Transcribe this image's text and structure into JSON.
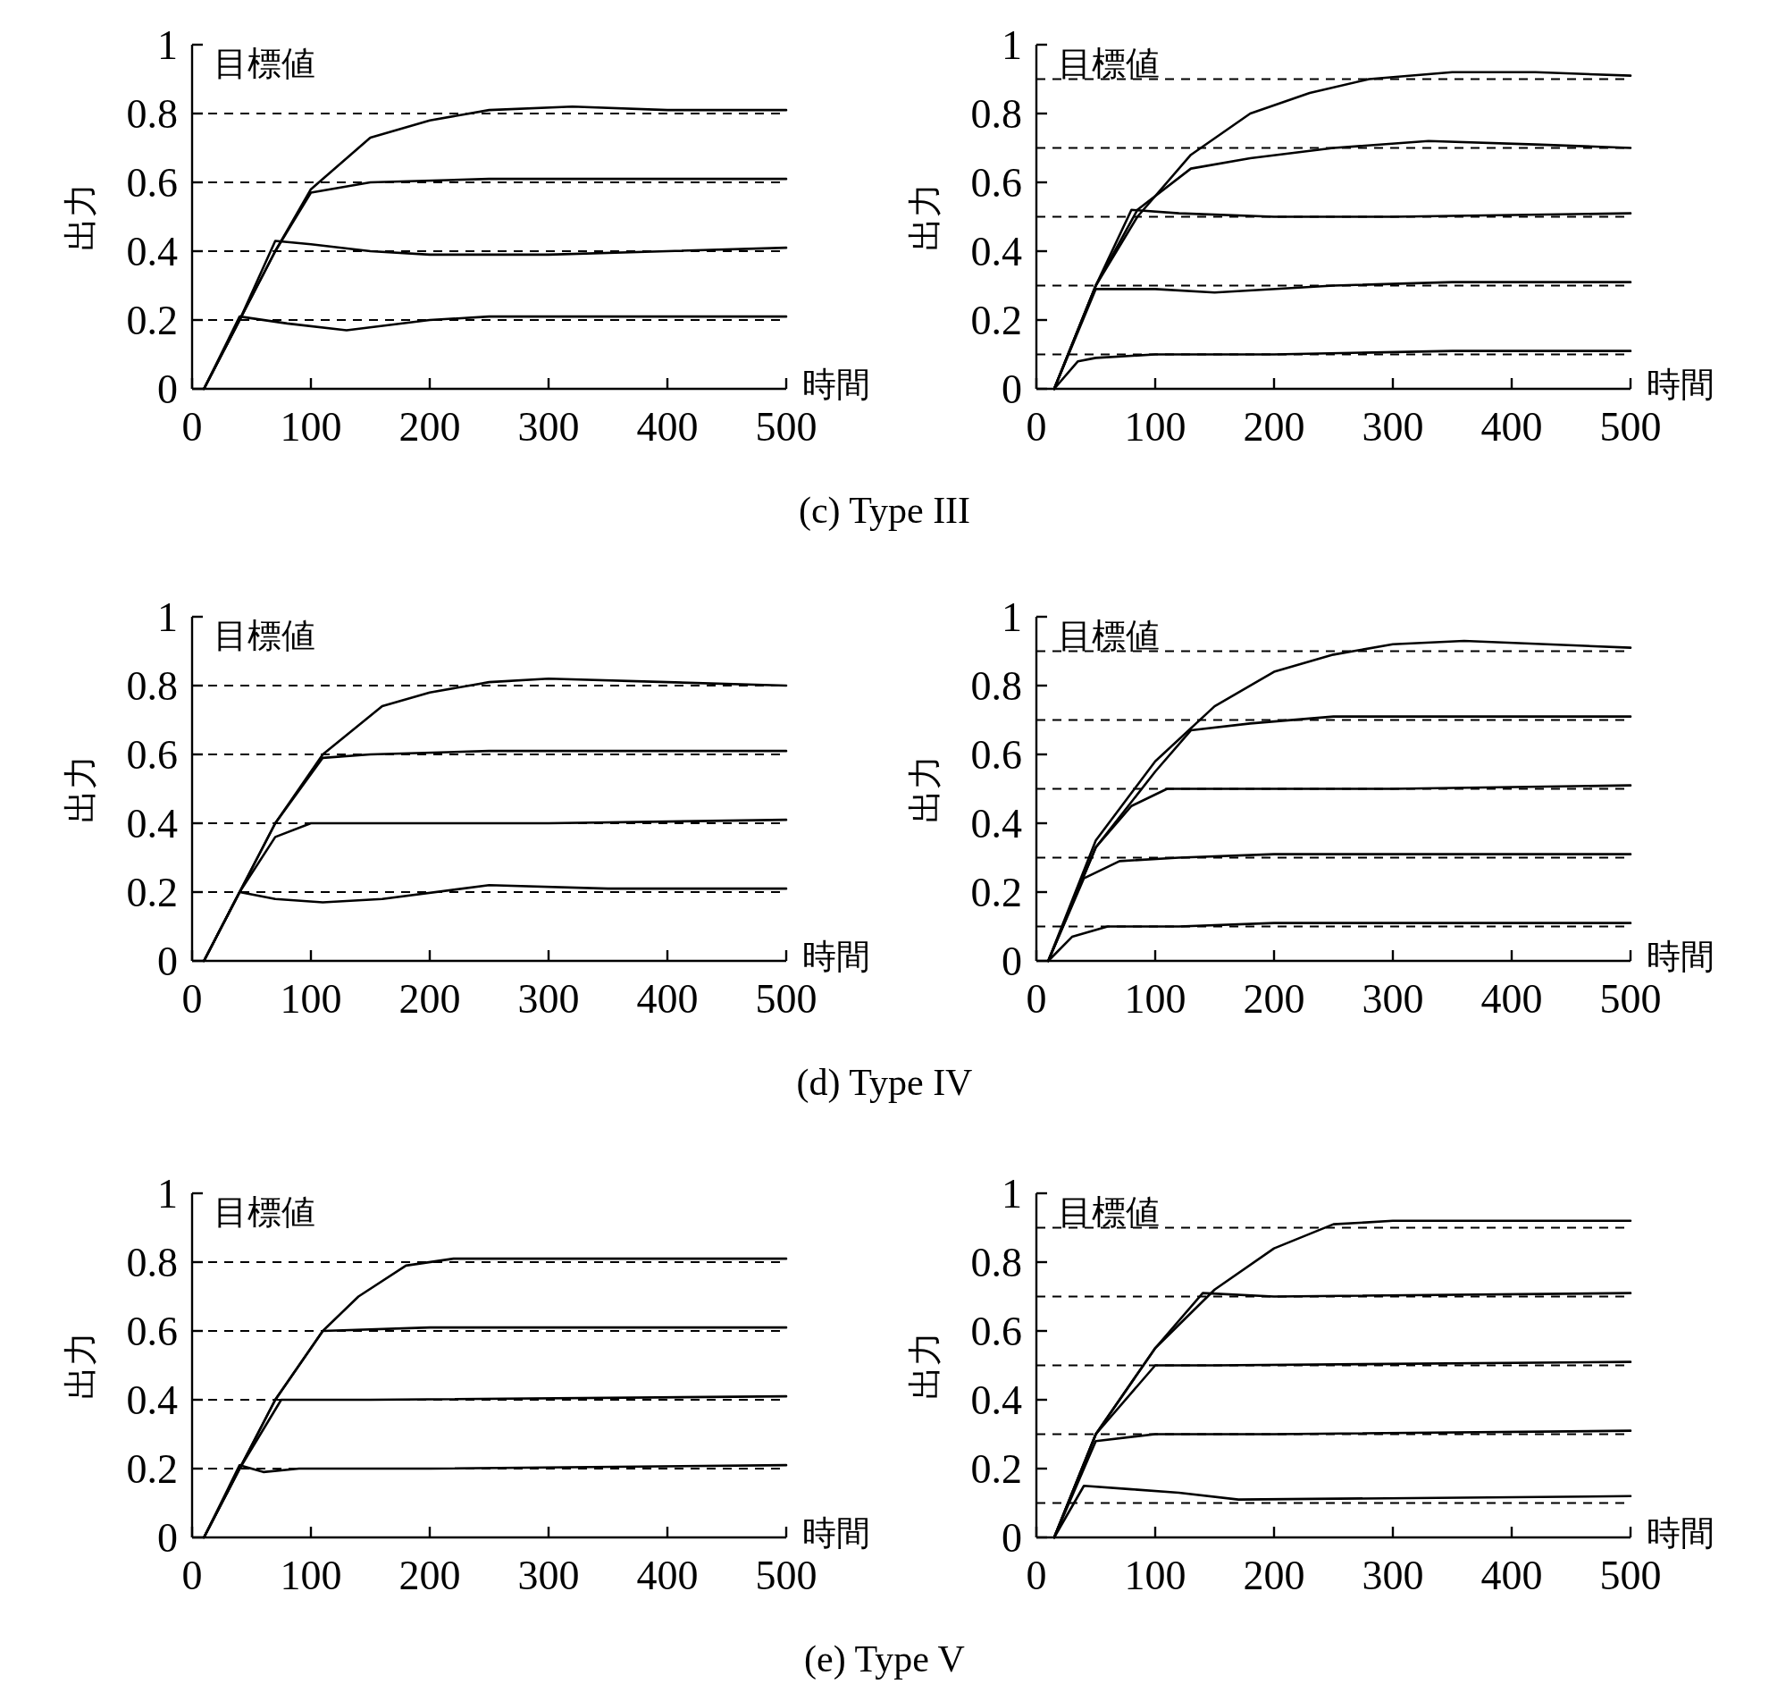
{
  "chart_data": [
    {
      "type": "line",
      "xlabel": "時間",
      "ylabel": "出力",
      "annotations": [
        "目標値",
        "(c) Type III"
      ],
      "xlim": [
        0,
        500
      ],
      "ylim": [
        0,
        1
      ],
      "xticks": [
        0,
        100,
        200,
        300,
        400,
        500
      ],
      "yticks": [
        0,
        0.2,
        0.4,
        0.6,
        0.8,
        1
      ],
      "ref_lines": [
        {
          "axis": "y",
          "value": 0.2,
          "line_style": "dashed"
        },
        {
          "axis": "y",
          "value": 0.4,
          "line_style": "dashed"
        },
        {
          "axis": "y",
          "value": 0.6,
          "line_style": "dashed"
        },
        {
          "axis": "y",
          "value": 0.8,
          "line_style": "dashed"
        }
      ],
      "series": [
        {
          "color": "#000000",
          "x": [
            10,
            40,
            70,
            100,
            150,
            200,
            250,
            320,
            400,
            500
          ],
          "values": [
            0,
            0.2,
            0.4,
            0.58,
            0.73,
            0.78,
            0.81,
            0.82,
            0.81,
            0.81
          ]
        },
        {
          "color": "#000000",
          "x": [
            10,
            40,
            70,
            100,
            150,
            250,
            350,
            500
          ],
          "values": [
            0,
            0.2,
            0.4,
            0.57,
            0.6,
            0.61,
            0.61,
            0.61
          ]
        },
        {
          "color": "#000000",
          "x": [
            10,
            40,
            70,
            100,
            150,
            200,
            300,
            400,
            500
          ],
          "values": [
            0,
            0.2,
            0.43,
            0.42,
            0.4,
            0.39,
            0.39,
            0.4,
            0.41
          ]
        },
        {
          "color": "#000000",
          "x": [
            10,
            40,
            80,
            130,
            200,
            250,
            350,
            500
          ],
          "values": [
            0,
            0.21,
            0.19,
            0.17,
            0.2,
            0.21,
            0.21,
            0.21
          ]
        }
      ]
    },
    {
      "type": "line",
      "xlabel": "時間",
      "ylabel": "出力",
      "annotations": [
        "目標値"
      ],
      "xlim": [
        0,
        500
      ],
      "ylim": [
        0,
        1
      ],
      "xticks": [
        0,
        100,
        200,
        300,
        400,
        500
      ],
      "yticks": [
        0,
        0.2,
        0.4,
        0.6,
        0.8,
        1
      ],
      "ref_lines": [
        {
          "axis": "y",
          "value": 0.1,
          "line_style": "dashed"
        },
        {
          "axis": "y",
          "value": 0.3,
          "line_style": "dashed"
        },
        {
          "axis": "y",
          "value": 0.5,
          "line_style": "dashed"
        },
        {
          "axis": "y",
          "value": 0.7,
          "line_style": "dashed"
        },
        {
          "axis": "y",
          "value": 0.9,
          "line_style": "dashed"
        }
      ],
      "series": [
        {
          "color": "#000000",
          "x": [
            15,
            50,
            85,
            130,
            180,
            230,
            280,
            350,
            420,
            500
          ],
          "values": [
            0,
            0.3,
            0.5,
            0.68,
            0.8,
            0.86,
            0.9,
            0.92,
            0.92,
            0.91
          ]
        },
        {
          "color": "#000000",
          "x": [
            15,
            50,
            85,
            130,
            180,
            250,
            330,
            420,
            500
          ],
          "values": [
            0,
            0.3,
            0.52,
            0.64,
            0.67,
            0.7,
            0.72,
            0.71,
            0.7
          ]
        },
        {
          "color": "#000000",
          "x": [
            15,
            50,
            80,
            120,
            200,
            300,
            500
          ],
          "values": [
            0,
            0.3,
            0.52,
            0.51,
            0.5,
            0.5,
            0.51
          ]
        },
        {
          "color": "#000000",
          "x": [
            15,
            50,
            100,
            150,
            250,
            350,
            500
          ],
          "values": [
            0,
            0.29,
            0.29,
            0.28,
            0.3,
            0.31,
            0.31
          ]
        },
        {
          "color": "#000000",
          "x": [
            15,
            35,
            50,
            100,
            200,
            350,
            500
          ],
          "values": [
            0,
            0.08,
            0.09,
            0.1,
            0.1,
            0.11,
            0.11
          ]
        }
      ]
    },
    {
      "type": "line",
      "xlabel": "時間",
      "ylabel": "出力",
      "annotations": [
        "目標値",
        "(d) Type IV"
      ],
      "xlim": [
        0,
        500
      ],
      "ylim": [
        0,
        1
      ],
      "xticks": [
        0,
        100,
        200,
        300,
        400,
        500
      ],
      "yticks": [
        0,
        0.2,
        0.4,
        0.6,
        0.8,
        1
      ],
      "ref_lines": [
        {
          "axis": "y",
          "value": 0.2,
          "line_style": "dashed"
        },
        {
          "axis": "y",
          "value": 0.4,
          "line_style": "dashed"
        },
        {
          "axis": "y",
          "value": 0.6,
          "line_style": "dashed"
        },
        {
          "axis": "y",
          "value": 0.8,
          "line_style": "dashed"
        }
      ],
      "series": [
        {
          "color": "#000000",
          "x": [
            10,
            40,
            70,
            110,
            160,
            200,
            250,
            300,
            400,
            500
          ],
          "values": [
            0,
            0.2,
            0.4,
            0.6,
            0.74,
            0.78,
            0.81,
            0.82,
            0.81,
            0.8
          ]
        },
        {
          "color": "#000000",
          "x": [
            10,
            40,
            70,
            110,
            150,
            250,
            500
          ],
          "values": [
            0,
            0.2,
            0.4,
            0.59,
            0.6,
            0.61,
            0.61
          ]
        },
        {
          "color": "#000000",
          "x": [
            10,
            40,
            70,
            100,
            150,
            300,
            500
          ],
          "values": [
            0,
            0.2,
            0.36,
            0.4,
            0.4,
            0.4,
            0.41
          ]
        },
        {
          "color": "#000000",
          "x": [
            10,
            40,
            70,
            110,
            160,
            250,
            350,
            500
          ],
          "values": [
            0,
            0.2,
            0.18,
            0.17,
            0.18,
            0.22,
            0.21,
            0.21
          ]
        }
      ]
    },
    {
      "type": "line",
      "xlabel": "時間",
      "ylabel": "出力",
      "annotations": [
        "目標値"
      ],
      "xlim": [
        0,
        500
      ],
      "ylim": [
        0,
        1
      ],
      "xticks": [
        0,
        100,
        200,
        300,
        400,
        500
      ],
      "yticks": [
        0,
        0.2,
        0.4,
        0.6,
        0.8,
        1
      ],
      "ref_lines": [
        {
          "axis": "y",
          "value": 0.1,
          "line_style": "dashed"
        },
        {
          "axis": "y",
          "value": 0.3,
          "line_style": "dashed"
        },
        {
          "axis": "y",
          "value": 0.5,
          "line_style": "dashed"
        },
        {
          "axis": "y",
          "value": 0.7,
          "line_style": "dashed"
        },
        {
          "axis": "y",
          "value": 0.9,
          "line_style": "dashed"
        }
      ],
      "series": [
        {
          "color": "#000000",
          "x": [
            10,
            50,
            100,
            150,
            200,
            250,
            300,
            360,
            500
          ],
          "values": [
            0,
            0.35,
            0.58,
            0.74,
            0.84,
            0.89,
            0.92,
            0.93,
            0.91
          ]
        },
        {
          "color": "#000000",
          "x": [
            10,
            50,
            100,
            130,
            180,
            250,
            350,
            500
          ],
          "values": [
            0,
            0.33,
            0.55,
            0.67,
            0.69,
            0.71,
            0.71,
            0.71
          ]
        },
        {
          "color": "#000000",
          "x": [
            10,
            50,
            80,
            110,
            200,
            300,
            500
          ],
          "values": [
            0,
            0.33,
            0.45,
            0.5,
            0.5,
            0.5,
            0.51
          ]
        },
        {
          "color": "#000000",
          "x": [
            10,
            40,
            70,
            120,
            200,
            300,
            500
          ],
          "values": [
            0,
            0.24,
            0.29,
            0.3,
            0.31,
            0.31,
            0.31
          ]
        },
        {
          "color": "#000000",
          "x": [
            10,
            30,
            60,
            120,
            200,
            350,
            500
          ],
          "values": [
            0,
            0.07,
            0.1,
            0.1,
            0.11,
            0.11,
            0.11
          ]
        }
      ]
    },
    {
      "type": "line",
      "xlabel": "時間",
      "ylabel": "出力",
      "annotations": [
        "目標値",
        "(e) Type V"
      ],
      "xlim": [
        0,
        500
      ],
      "ylim": [
        0,
        1
      ],
      "xticks": [
        0,
        100,
        200,
        300,
        400,
        500
      ],
      "yticks": [
        0,
        0.2,
        0.4,
        0.6,
        0.8,
        1
      ],
      "ref_lines": [
        {
          "axis": "y",
          "value": 0.2,
          "line_style": "dashed"
        },
        {
          "axis": "y",
          "value": 0.4,
          "line_style": "dashed"
        },
        {
          "axis": "y",
          "value": 0.6,
          "line_style": "dashed"
        },
        {
          "axis": "y",
          "value": 0.8,
          "line_style": "dashed"
        }
      ],
      "series": [
        {
          "color": "#000000",
          "x": [
            10,
            40,
            70,
            110,
            140,
            180,
            220,
            300,
            500
          ],
          "values": [
            0,
            0.2,
            0.4,
            0.6,
            0.7,
            0.79,
            0.81,
            0.81,
            0.81
          ]
        },
        {
          "color": "#000000",
          "x": [
            10,
            40,
            70,
            110,
            200,
            500
          ],
          "values": [
            0,
            0.2,
            0.4,
            0.6,
            0.61,
            0.61
          ]
        },
        {
          "color": "#000000",
          "x": [
            10,
            40,
            75,
            150,
            500
          ],
          "values": [
            0,
            0.2,
            0.4,
            0.4,
            0.41
          ]
        },
        {
          "color": "#000000",
          "x": [
            10,
            40,
            60,
            90,
            200,
            500
          ],
          "values": [
            0,
            0.21,
            0.19,
            0.2,
            0.2,
            0.21
          ]
        }
      ]
    },
    {
      "type": "line",
      "xlabel": "時間",
      "ylabel": "出力",
      "annotations": [
        "目標値"
      ],
      "xlim": [
        0,
        500
      ],
      "ylim": [
        0,
        1
      ],
      "xticks": [
        0,
        100,
        200,
        300,
        400,
        500
      ],
      "yticks": [
        0,
        0.2,
        0.4,
        0.6,
        0.8,
        1
      ],
      "ref_lines": [
        {
          "axis": "y",
          "value": 0.1,
          "line_style": "dashed"
        },
        {
          "axis": "y",
          "value": 0.3,
          "line_style": "dashed"
        },
        {
          "axis": "y",
          "value": 0.5,
          "line_style": "dashed"
        },
        {
          "axis": "y",
          "value": 0.7,
          "line_style": "dashed"
        },
        {
          "axis": "y",
          "value": 0.9,
          "line_style": "dashed"
        }
      ],
      "series": [
        {
          "color": "#000000",
          "x": [
            15,
            50,
            100,
            150,
            200,
            250,
            300,
            500
          ],
          "values": [
            0,
            0.3,
            0.55,
            0.72,
            0.84,
            0.91,
            0.92,
            0.92
          ]
        },
        {
          "color": "#000000",
          "x": [
            15,
            50,
            100,
            140,
            200,
            500
          ],
          "values": [
            0,
            0.3,
            0.55,
            0.71,
            0.7,
            0.71
          ]
        },
        {
          "color": "#000000",
          "x": [
            15,
            50,
            100,
            150,
            500
          ],
          "values": [
            0,
            0.3,
            0.5,
            0.5,
            0.51
          ]
        },
        {
          "color": "#000000",
          "x": [
            15,
            50,
            100,
            200,
            500
          ],
          "values": [
            0,
            0.28,
            0.3,
            0.3,
            0.31
          ]
        },
        {
          "color": "#000000",
          "x": [
            15,
            40,
            80,
            120,
            170,
            500
          ],
          "values": [
            0,
            0.15,
            0.14,
            0.13,
            0.11,
            0.12
          ]
        }
      ]
    }
  ]
}
